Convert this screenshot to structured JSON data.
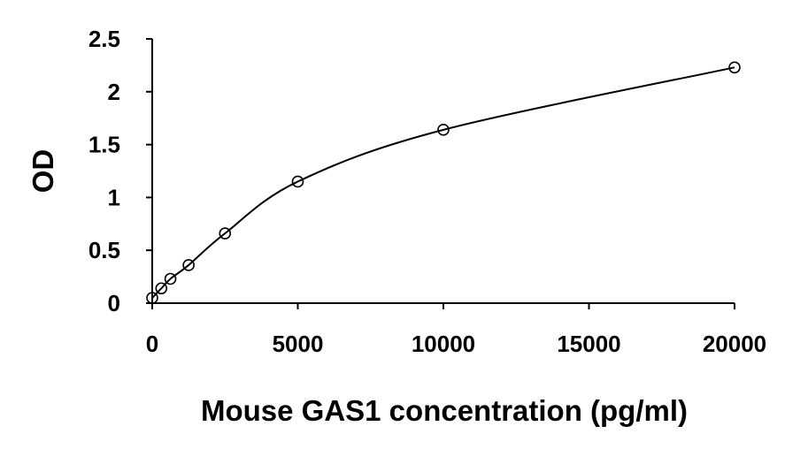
{
  "chart_data": {
    "type": "scatter",
    "title": "",
    "xlabel": "Mouse GAS1 concentration (pg/ml)",
    "ylabel": "OD",
    "xlim": [
      0,
      20000
    ],
    "ylim": [
      0,
      2.5
    ],
    "x_ticks": [
      {
        "value": 0,
        "label": "0"
      },
      {
        "value": 5000,
        "label": "5000"
      },
      {
        "value": 10000,
        "label": "10000"
      },
      {
        "value": 15000,
        "label": "15000"
      },
      {
        "value": 20000,
        "label": "20000"
      }
    ],
    "y_ticks": [
      {
        "value": 0,
        "label": "0"
      },
      {
        "value": 0.5,
        "label": "0.5"
      },
      {
        "value": 1,
        "label": "1"
      },
      {
        "value": 1.5,
        "label": "1.5"
      },
      {
        "value": 2,
        "label": "2"
      },
      {
        "value": 2.5,
        "label": "2.5"
      }
    ],
    "grid": false,
    "legend": "none",
    "fit_curve": true,
    "series": [
      {
        "x": [
          0,
          312.5,
          625,
          1250,
          2500,
          5000,
          10000,
          20000
        ],
        "y": [
          0.05,
          0.14,
          0.23,
          0.36,
          0.66,
          1.15,
          1.64,
          2.23
        ]
      }
    ],
    "colors": {
      "axis": "#000000",
      "marker": "#000000",
      "line": "#000000"
    }
  }
}
